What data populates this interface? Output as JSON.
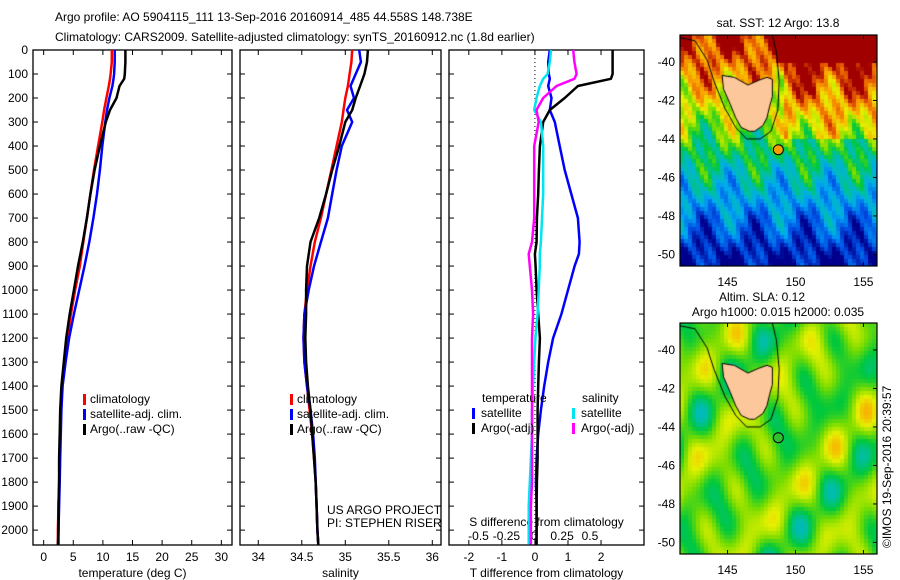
{
  "title": {
    "line1": "Argo profile: AO 5904115_111 13-Sep-2016 20160914_485 44.558S 148.738E",
    "line2": "Climatology: CARS2009. Satellite-adjusted climatology: synTS_20160912.nc (1.8d earlier)"
  },
  "colors": {
    "climatology": "#ff0000",
    "satellite": "#0000ff",
    "argo": "#000000",
    "sat_s": "#00e5ee",
    "argo_s": "#ff00ff",
    "land": "#fcc79a"
  },
  "depth_axis": {
    "ticks": [
      "0",
      "100",
      "200",
      "300",
      "400",
      "500",
      "600",
      "700",
      "800",
      "900",
      "1000",
      "1100",
      "1200",
      "1300",
      "1400",
      "1500",
      "1600",
      "1700",
      "1800",
      "1900",
      "2000"
    ],
    "range": [
      0,
      2062
    ]
  },
  "chart_data": [
    {
      "type": "line",
      "id": "temperature",
      "xlabel": "temperature (deg C)",
      "xlim": [
        -1.8,
        31.8
      ],
      "xticks": [
        "0",
        "5",
        "10",
        "15",
        "20",
        "25",
        "30"
      ],
      "xtick_values": [
        0,
        5,
        10,
        15,
        20,
        25,
        30
      ],
      "legend": [
        "climatology",
        "satellite-adj. clim.",
        "Argo(..raw -QC)"
      ],
      "depth": [
        0,
        50,
        100,
        120,
        150,
        200,
        250,
        300,
        400,
        500,
        600,
        700,
        800,
        900,
        1000,
        1100,
        1200,
        1300,
        1400,
        1500,
        1600,
        1700,
        1800,
        1900,
        2000,
        2060
      ],
      "series": [
        {
          "name": "climatology",
          "color": "#ff0000",
          "values": [
            11.5,
            11.5,
            11.3,
            11.2,
            11.0,
            10.6,
            10.2,
            9.9,
            9.2,
            8.5,
            7.9,
            7.3,
            6.7,
            6.1,
            5.3,
            4.6,
            4.0,
            3.5,
            3.1,
            2.9,
            2.8,
            2.7,
            2.6,
            2.5,
            2.4,
            2.4
          ]
        },
        {
          "name": "satellite-adj. clim.",
          "color": "#0000ff",
          "values": [
            12.0,
            12.0,
            11.9,
            11.8,
            11.6,
            11.1,
            10.7,
            10.4,
            9.9,
            9.5,
            9.0,
            8.4,
            7.7,
            6.9,
            6.0,
            5.1,
            4.3,
            3.7,
            3.2,
            3.0,
            2.9,
            2.8,
            2.7,
            2.6,
            2.5,
            2.5
          ]
        },
        {
          "name": "Argo(..raw -QC)",
          "color": "#000000",
          "values": [
            13.8,
            13.8,
            13.7,
            13.6,
            12.8,
            12.3,
            11.2,
            10.5,
            9.5,
            8.6,
            7.9,
            7.3,
            6.6,
            5.8,
            5.1,
            4.4,
            3.8,
            3.4,
            3.0,
            2.8,
            2.7,
            2.6,
            2.6,
            2.5,
            2.5,
            2.4
          ]
        }
      ]
    },
    {
      "type": "line",
      "id": "salinity",
      "xlabel": "salinity",
      "xlim": [
        33.79,
        36.1
      ],
      "xticks": [
        "34",
        "34.5",
        "35",
        "35.5",
        "36"
      ],
      "xtick_values": [
        34,
        34.5,
        35,
        35.5,
        36
      ],
      "legend": [
        "climatology",
        "satellite-adj. clim.",
        "Argo(..raw -QC)"
      ],
      "annotation": [
        "US ARGO PROJECT",
        "PI: STEPHEN RISER"
      ],
      "depth": [
        0,
        50,
        100,
        150,
        200,
        250,
        300,
        400,
        500,
        600,
        700,
        800,
        900,
        1000,
        1100,
        1200,
        1300,
        1400,
        1500,
        1600,
        1700,
        1800,
        1900,
        2000,
        2060
      ],
      "series": [
        {
          "name": "climatology",
          "color": "#ff0000",
          "values": [
            35.08,
            35.07,
            35.05,
            35.03,
            35.0,
            34.98,
            34.96,
            34.9,
            34.84,
            34.78,
            34.72,
            34.65,
            34.6,
            34.56,
            34.53,
            34.52,
            34.53,
            34.56,
            34.59,
            34.62,
            34.64,
            34.66,
            34.67,
            34.68,
            34.69
          ]
        },
        {
          "name": "satellite-adj. clim.",
          "color": "#0000ff",
          "values": [
            35.16,
            35.18,
            35.12,
            35.06,
            35.1,
            35.02,
            35.08,
            34.96,
            34.9,
            34.85,
            34.8,
            34.72,
            34.64,
            34.58,
            34.53,
            34.52,
            34.53,
            34.56,
            34.6,
            34.63,
            34.65,
            34.66,
            34.67,
            34.68,
            34.69
          ]
        },
        {
          "name": "Argo(..raw -QC)",
          "color": "#000000",
          "values": [
            35.26,
            35.25,
            35.22,
            35.17,
            35.12,
            35.08,
            35.0,
            34.93,
            34.85,
            34.78,
            34.7,
            34.6,
            34.56,
            34.55,
            34.55,
            34.54,
            34.55,
            34.57,
            34.6,
            34.62,
            34.64,
            34.66,
            34.67,
            34.68,
            34.69
          ]
        }
      ]
    },
    {
      "type": "line",
      "id": "difference",
      "xlabel": "T difference from climatology",
      "xlabel_top": "S difference from climatology",
      "xlim": [
        -2.6,
        3.3
      ],
      "xticks": [
        "-2",
        "-1",
        "0",
        "1",
        "2"
      ],
      "xtick_values": [
        -2,
        -1,
        0,
        1,
        2
      ],
      "s_xlim": [
        -0.765,
        0.985
      ],
      "s_xticks": [
        "-0.5",
        "-0.25",
        "0",
        "0.25",
        "0.5"
      ],
      "s_xtick_values": [
        -0.5,
        -0.25,
        0,
        0.25,
        0.5
      ],
      "legend": {
        "temperature_title": "temperature",
        "salinity_title": "salinity",
        "items": [
          "satellite",
          "Argo(-adj)",
          "satellite",
          "Argo(-adj)"
        ]
      },
      "depth": [
        0,
        50,
        100,
        120,
        150,
        200,
        250,
        300,
        400,
        500,
        600,
        700,
        800,
        850,
        900,
        1000,
        1100,
        1200,
        1300,
        1400,
        1500,
        1600,
        1700,
        1800,
        1900,
        2000,
        2060
      ],
      "series": [
        {
          "name": "temperature satellite",
          "axis": "T",
          "color": "#0000ff",
          "values": [
            0.45,
            0.4,
            0.42,
            0.45,
            0.4,
            0.5,
            0.45,
            0.6,
            0.75,
            0.9,
            1.1,
            1.3,
            1.35,
            1.33,
            1.2,
            1.0,
            0.8,
            0.55,
            0.4,
            0.28,
            0.18,
            0.1,
            0.05,
            0.03,
            0.05,
            0.05,
            0.04
          ]
        },
        {
          "name": "temperature Argo(-adj)",
          "axis": "T",
          "color": "#000000",
          "values": [
            2.35,
            2.35,
            2.35,
            2.3,
            1.3,
            0.9,
            0.45,
            0.25,
            0.15,
            0.12,
            0.1,
            0.06,
            0.05,
            0.0,
            0.02,
            0.05,
            0.1,
            0.15,
            0.12,
            0.1,
            0.08,
            0.08,
            0.08,
            0.06,
            0.05,
            0.05,
            0.05
          ]
        },
        {
          "name": "salinity satellite",
          "axis": "S",
          "color": "#00e5ee",
          "values": [
            0.15,
            0.14,
            0.12,
            0.08,
            0.05,
            0.02,
            0.0,
            0.06,
            0.08,
            0.08,
            0.08,
            0.07,
            0.06,
            0.05,
            0.05,
            0.04,
            0.03,
            0.01,
            0.0,
            -0.01,
            -0.02,
            -0.02,
            -0.03,
            -0.04,
            -0.05,
            -0.05,
            -0.05
          ]
        },
        {
          "name": "salinity Argo(-adj)",
          "axis": "S",
          "color": "#ff00ff",
          "values": [
            0.35,
            0.36,
            0.38,
            0.36,
            0.2,
            0.08,
            0.02,
            0.04,
            0.0,
            0.0,
            0.0,
            0.0,
            -0.02,
            -0.05,
            -0.04,
            -0.02,
            -0.01,
            -0.02,
            -0.02,
            -0.02,
            -0.02,
            -0.02,
            -0.02,
            -0.02,
            -0.03,
            -0.03,
            -0.03
          ]
        }
      ]
    },
    {
      "type": "heatmap",
      "id": "sst-map",
      "title": "sat. SST: 12 Argo: 13.8",
      "xticks": [
        "145",
        "150",
        "155"
      ],
      "xtick_values": [
        145,
        150,
        155
      ],
      "yticks": [
        "-40",
        "-42",
        "-44",
        "-46",
        "-48",
        "-50"
      ],
      "ytick_values": [
        -40,
        -42,
        -44,
        -46,
        -48,
        -50
      ],
      "xlim": [
        141.5,
        156
      ],
      "ylim": [
        -50.6,
        -38.6
      ],
      "argo_position": {
        "lon": 148.738,
        "lat": -44.558
      }
    },
    {
      "type": "heatmap",
      "id": "sla-map",
      "title": "Altim. SLA: 0.12",
      "subtitle": "Argo h1000: 0.015 h2000: 0.035",
      "xticks": [
        "145",
        "150",
        "155"
      ],
      "xtick_values": [
        145,
        150,
        155
      ],
      "yticks": [
        "-40",
        "-42",
        "-44",
        "-46",
        "-48",
        "-50"
      ],
      "ytick_values": [
        -40,
        -42,
        -44,
        -46,
        -48,
        -50
      ],
      "xlim": [
        141.5,
        156
      ],
      "ylim": [
        -50.6,
        -38.6
      ],
      "argo_position": {
        "lon": 148.738,
        "lat": -44.558
      },
      "credit": "©IMOS 19-Sep-2016 20:39:57"
    }
  ]
}
